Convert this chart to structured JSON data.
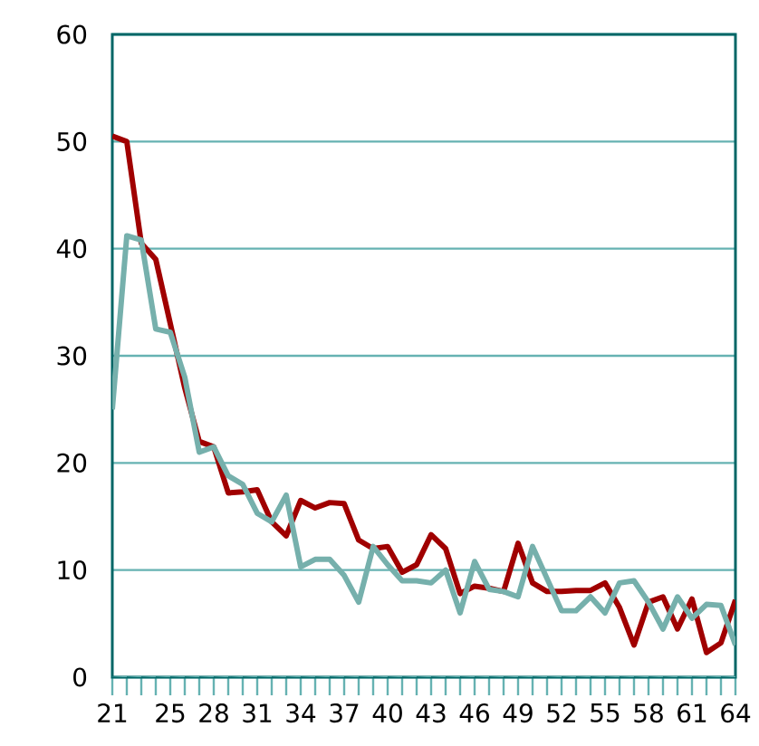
{
  "chart_data": {
    "type": "line",
    "x": [
      21,
      22,
      23,
      24,
      25,
      26,
      27,
      28,
      29,
      30,
      31,
      32,
      33,
      34,
      35,
      36,
      37,
      38,
      39,
      40,
      41,
      42,
      43,
      44,
      45,
      46,
      47,
      48,
      49,
      50,
      51,
      52,
      53,
      54,
      55,
      56,
      57,
      58,
      59,
      60,
      61,
      62,
      63,
      64
    ],
    "series": [
      {
        "color": "#a00000",
        "values": [
          50.5,
          50,
          40.5,
          39,
          33,
          27,
          22,
          21.5,
          17.2,
          17.3,
          17.5,
          14.5,
          13.2,
          16.5,
          15.8,
          16.3,
          16.2,
          12.8,
          12,
          12.2,
          9.8,
          10.5,
          13.3,
          12,
          7.8,
          8.5,
          8.3,
          8,
          12.5,
          8.8,
          8,
          8,
          8.1,
          8.1,
          8.8,
          6.5,
          3,
          7,
          7.5,
          4.5,
          7.3,
          2.3,
          3.2,
          7.2
        ]
      },
      {
        "color": "#76b0ac",
        "values": [
          25,
          41.2,
          40.8,
          32.5,
          32.2,
          28,
          21,
          21.5,
          18.8,
          18,
          15.3,
          14.5,
          17,
          10.3,
          11,
          11,
          9.5,
          7,
          12.2,
          10.5,
          9,
          9,
          8.8,
          10,
          6,
          10.8,
          8.2,
          8,
          7.5,
          12.2,
          9.2,
          6.2,
          6.2,
          7.5,
          6,
          8.8,
          9,
          7,
          4.5,
          7.5,
          5.5,
          6.8,
          6.7,
          3
        ]
      }
    ],
    "xlim": [
      21,
      64
    ],
    "ylim": [
      0,
      60
    ],
    "xticks": [
      21,
      {
        "value": 22,
        "label": null
      },
      {
        "value": 23,
        "label": null
      },
      {
        "value": 24,
        "label": null
      },
      25,
      {
        "value": 26,
        "label": null
      },
      {
        "value": 27,
        "label": null
      },
      28,
      {
        "value": 29,
        "label": null
      },
      {
        "value": 30,
        "label": null
      },
      31,
      {
        "value": 32,
        "label": null
      },
      {
        "value": 33,
        "label": null
      },
      34,
      {
        "value": 35,
        "label": null
      },
      {
        "value": 36,
        "label": null
      },
      37,
      {
        "value": 38,
        "label": null
      },
      {
        "value": 39,
        "label": null
      },
      40,
      {
        "value": 41,
        "label": null
      },
      {
        "value": 42,
        "label": null
      },
      43,
      {
        "value": 44,
        "label": null
      },
      {
        "value": 45,
        "label": null
      },
      46,
      {
        "value": 47,
        "label": null
      },
      {
        "value": 48,
        "label": null
      },
      49,
      {
        "value": 50,
        "label": null
      },
      {
        "value": 51,
        "label": null
      },
      52,
      {
        "value": 53,
        "label": null
      },
      {
        "value": 54,
        "label": null
      },
      55,
      {
        "value": 56,
        "label": null
      },
      {
        "value": 57,
        "label": null
      },
      58,
      {
        "value": 59,
        "label": null
      },
      {
        "value": 60,
        "label": null
      },
      61,
      {
        "value": 62,
        "label": null
      },
      {
        "value": 63,
        "label": null
      },
      64
    ],
    "yticks": [
      0,
      10,
      20,
      30,
      40,
      50,
      60
    ],
    "grid": "y",
    "marker": "none",
    "line_style": "solid"
  }
}
